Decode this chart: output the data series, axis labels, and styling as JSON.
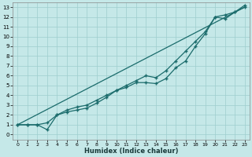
{
  "xlabel": "Humidex (Indice chaleur)",
  "bg_color": "#c5e8e8",
  "grid_color": "#9ecece",
  "line_color": "#1a6b6b",
  "xlim": [
    -0.5,
    23.5
  ],
  "ylim": [
    -0.5,
    13.5
  ],
  "xticks": [
    0,
    1,
    2,
    3,
    4,
    5,
    6,
    7,
    8,
    9,
    10,
    11,
    12,
    13,
    14,
    15,
    16,
    17,
    18,
    19,
    20,
    21,
    22,
    23
  ],
  "yticks": [
    0,
    1,
    2,
    3,
    4,
    5,
    6,
    7,
    8,
    9,
    10,
    11,
    12,
    13
  ],
  "line1_x": [
    0,
    23
  ],
  "line1_y": [
    1,
    13
  ],
  "line2_x": [
    0,
    1,
    2,
    3,
    4,
    5,
    6,
    7,
    8,
    9,
    10,
    11,
    12,
    13,
    14,
    15,
    16,
    17,
    18,
    19,
    20,
    21,
    22,
    23
  ],
  "line2_y": [
    1,
    1,
    1,
    0.5,
    2,
    2.3,
    2.5,
    2.7,
    3.2,
    3.8,
    4.5,
    4.8,
    5.3,
    5.3,
    5.2,
    5.7,
    6.8,
    7.5,
    9,
    10.3,
    12,
    12.2,
    12.5,
    13
  ],
  "line3_x": [
    0,
    1,
    2,
    3,
    4,
    5,
    6,
    7,
    8,
    9,
    10,
    11,
    12,
    13,
    14,
    15,
    16,
    17,
    18,
    19,
    20,
    21,
    22,
    23
  ],
  "line3_y": [
    1,
    1,
    1,
    1.2,
    2,
    2.5,
    2.8,
    3,
    3.5,
    4,
    4.5,
    5,
    5.5,
    6,
    5.8,
    6.5,
    7.5,
    8.5,
    9.5,
    10.5,
    12,
    11.8,
    12.5,
    13.2
  ]
}
